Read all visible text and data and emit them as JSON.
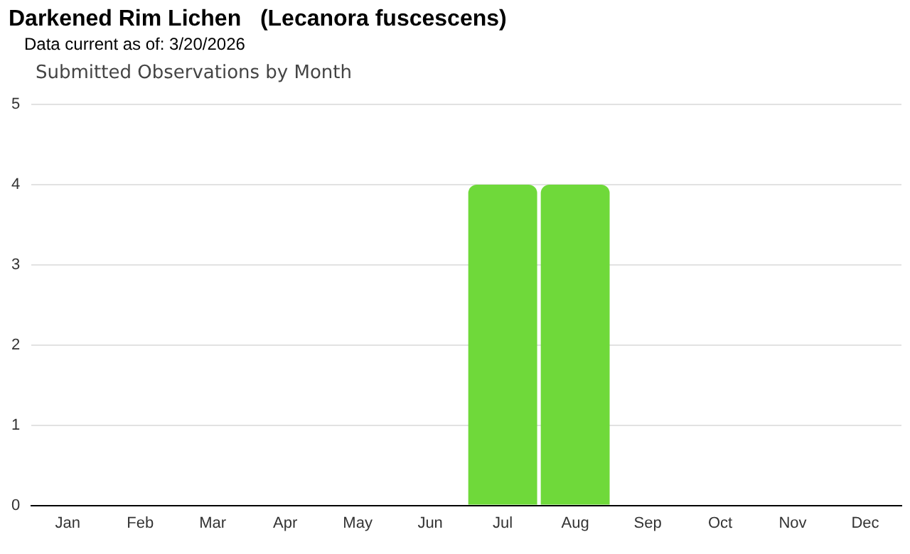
{
  "chart_data": {
    "type": "bar",
    "title": "Darkened Rim Lichen   (Lecanora fuscescens)",
    "subtitle": "Data current as of: 3/20/2026",
    "annotations": [
      "Submitted Observations by Month"
    ],
    "categories": [
      "Jan",
      "Feb",
      "Mar",
      "Apr",
      "May",
      "Jun",
      "Jul",
      "Aug",
      "Sep",
      "Oct",
      "Nov",
      "Dec"
    ],
    "values": [
      0,
      0,
      0,
      0,
      0,
      0,
      4,
      4,
      0,
      0,
      0,
      0
    ],
    "color": "#6fd93a",
    "ylim": [
      0,
      5
    ],
    "yticks": [
      0,
      1,
      2,
      3,
      4,
      5
    ],
    "grid": "y",
    "legend": false
  }
}
